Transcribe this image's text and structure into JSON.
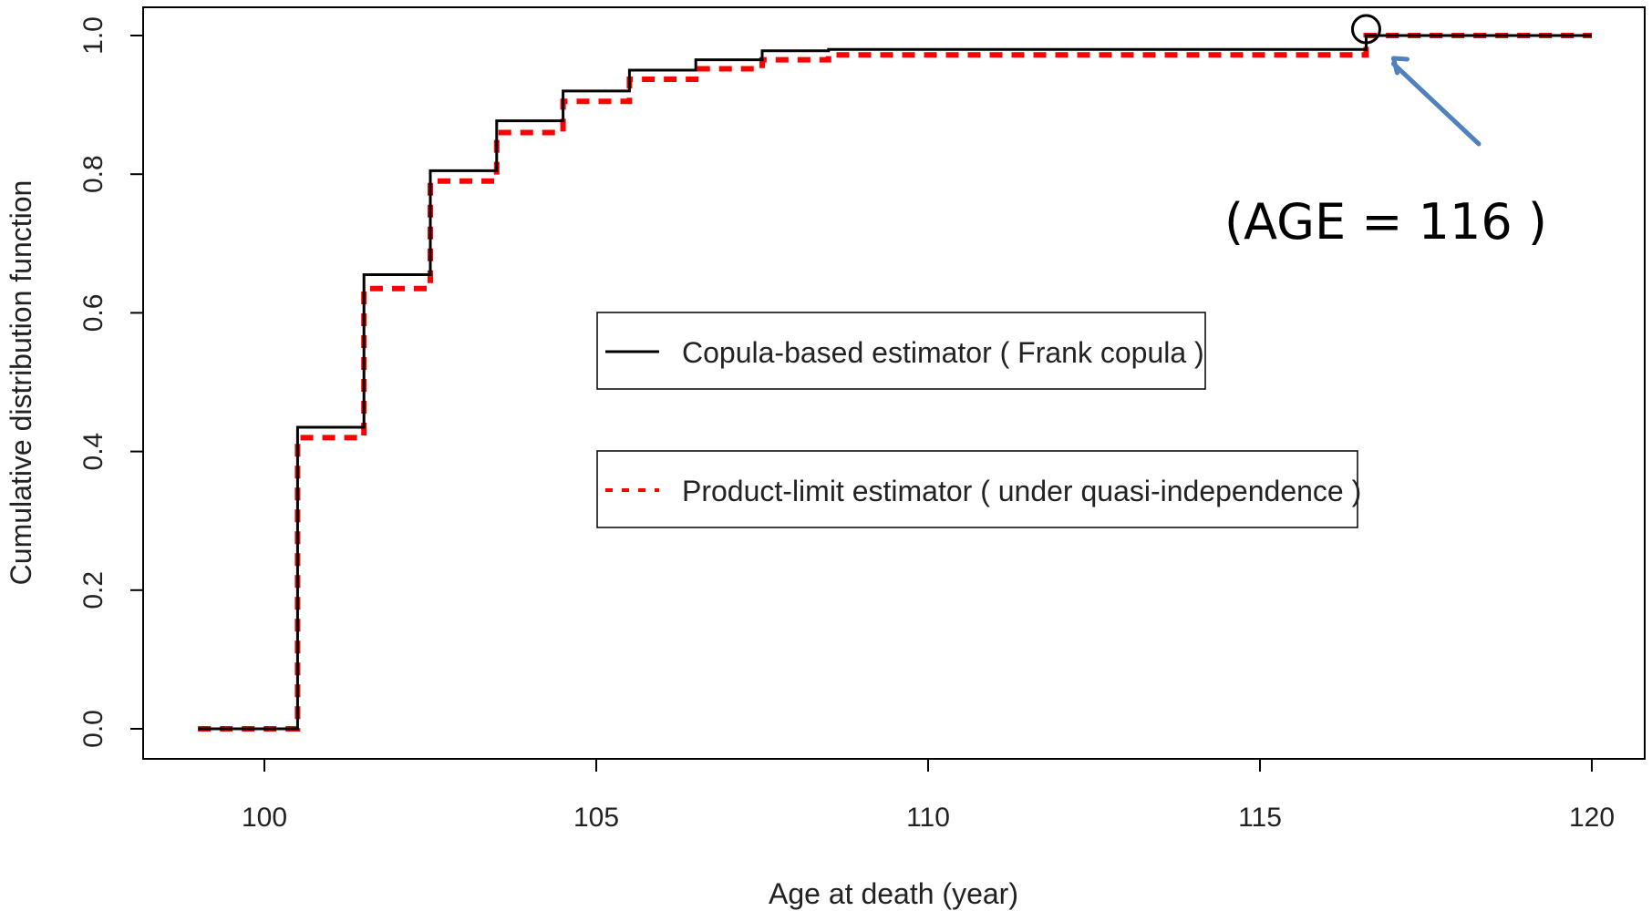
{
  "chart_data": {
    "type": "line",
    "step": true,
    "title": "",
    "xlabel": "Age at death (year)",
    "ylabel": "Cumulative distribution function",
    "xlim": [
      99,
      120
    ],
    "ylim": [
      0,
      1
    ],
    "x_ticks": [
      100,
      105,
      110,
      115,
      120
    ],
    "y_ticks": [
      0.0,
      0.2,
      0.4,
      0.6,
      0.8,
      1.0
    ],
    "x_tick_labels": [
      "100",
      "105",
      "110",
      "115",
      "120"
    ],
    "y_tick_labels": [
      "0.0",
      "0.2",
      "0.4",
      "0.6",
      "0.8",
      "1.0"
    ],
    "grid": false,
    "series": [
      {
        "name": "Copula-based estimator ( Frank copula )",
        "color": "#000000",
        "style": "solid",
        "x": [
          99,
          100.5,
          101.5,
          102.5,
          103.5,
          104.5,
          105.5,
          106.5,
          107.5,
          108.5,
          116.6,
          120
        ],
        "y": [
          0.0,
          0.435,
          0.655,
          0.805,
          0.877,
          0.92,
          0.95,
          0.965,
          0.978,
          0.98,
          1.0,
          1.0
        ]
      },
      {
        "name": "Product-limit estimator ( under quasi-independence )",
        "color": "#ff0000",
        "style": "dotted",
        "x": [
          99,
          100.5,
          101.5,
          102.5,
          103.5,
          104.5,
          105.5,
          106.5,
          107.5,
          108.5,
          116.6,
          120
        ],
        "y": [
          0.0,
          0.42,
          0.635,
          0.79,
          0.86,
          0.905,
          0.937,
          0.952,
          0.965,
          0.972,
          1.0,
          1.0
        ]
      }
    ],
    "annotation": {
      "text": "(AGE = 116 )",
      "x": 116.6,
      "y": 1.0,
      "arrow_color": "#4f81bd"
    }
  }
}
